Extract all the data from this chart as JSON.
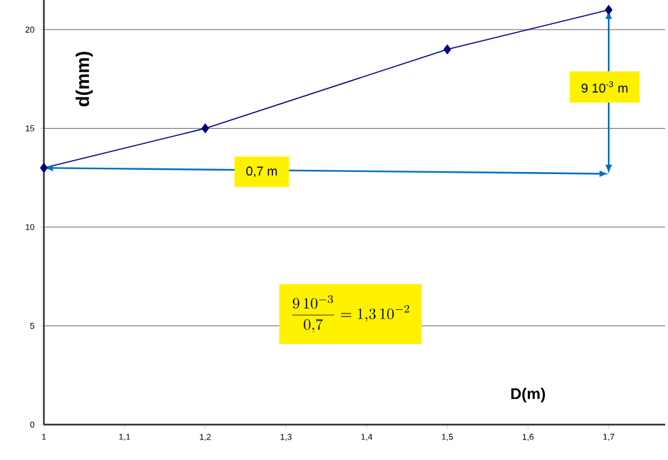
{
  "chart_data": {
    "type": "line",
    "xlabel": "D(m)",
    "ylabel": "d(mm)",
    "x": [
      1,
      1.2,
      1.5,
      1.7
    ],
    "series": [
      {
        "color": "#000080",
        "values": [
          13,
          15,
          19,
          21
        ]
      }
    ],
    "xlim": [
      1,
      1.77
    ],
    "ylim": [
      0,
      21.5
    ],
    "xticks": [
      {
        "value": 1,
        "label": "1"
      },
      {
        "value": 1.1,
        "label": "1,1"
      },
      {
        "value": 1.2,
        "label": "1,2"
      },
      {
        "value": 1.3,
        "label": "1,3"
      },
      {
        "value": 1.4,
        "label": "1,4"
      },
      {
        "value": 1.5,
        "label": "1,5"
      },
      {
        "value": 1.6,
        "label": "1,6"
      },
      {
        "value": 1.7,
        "label": "1,7"
      }
    ],
    "yticks": [
      0,
      5,
      10,
      15,
      20
    ],
    "grid": "y",
    "marker": "diamond",
    "line_style": "solid",
    "annotations": [
      "0,7 m",
      "9 10$^{-3}$ m",
      "\\frac{9\\,10^{-3}}{0{,}7}=1{,}3\\,10^{-2}"
    ]
  }
}
